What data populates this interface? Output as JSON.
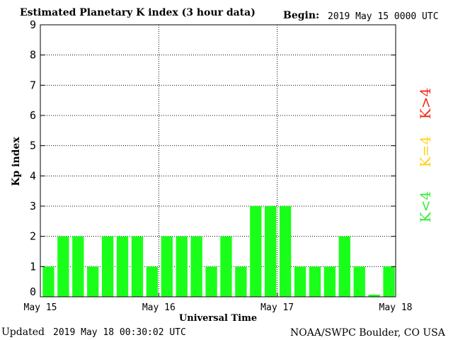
{
  "header": {
    "title": "Estimated Planetary K index (3 hour data)",
    "begin_label": "Begin:",
    "begin_value": "2019 May 15 0000 UTC"
  },
  "footer": {
    "updated_label": "Updated",
    "updated_value": "2019 May 18 00:30:02 UTC",
    "source": "NOAA/SWPC Boulder, CO USA"
  },
  "colors": {
    "bar": "#1aff1a",
    "legend_low": "#33ee33",
    "legend_mid": "#ffd21a",
    "legend_high": "#ee2a1a"
  },
  "chart_data": {
    "type": "bar",
    "title": "Estimated Planetary K index (3 hour data)",
    "xlabel": "Universal Time",
    "ylabel": "Kp index",
    "ylim": [
      0,
      9
    ],
    "y_ticks": [
      "0",
      "1",
      "2",
      "3",
      "4",
      "5",
      "6",
      "7",
      "8",
      "9"
    ],
    "x_tick_labels": [
      "May 15",
      "May 16",
      "May 17",
      "May 18"
    ],
    "grid": true,
    "values": [
      1,
      2,
      2,
      1,
      2,
      2,
      2,
      1,
      2,
      2,
      2,
      1,
      2,
      1,
      3,
      3,
      3,
      1,
      1,
      1,
      2,
      1,
      0.07,
      1
    ],
    "legend": [
      "K<4",
      "K=4",
      "K>4"
    ]
  }
}
